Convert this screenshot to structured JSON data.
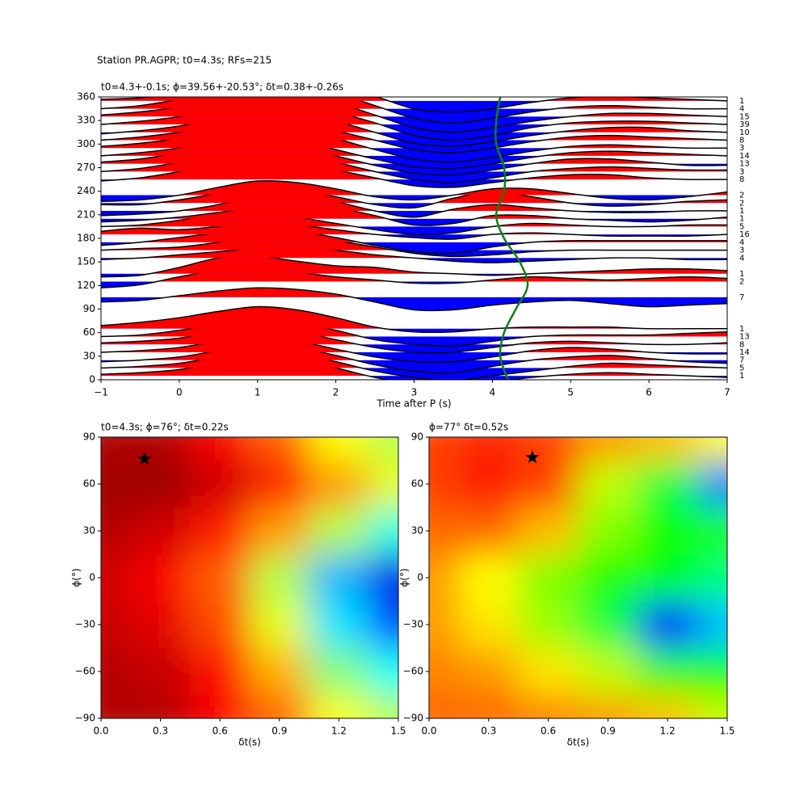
{
  "chart_data": [
    {
      "type": "wiggle",
      "suptitle": "Station PR.AGPR; t0=4.3s; RFs=215",
      "title": "t0=4.3+-0.1s; ϕ=39.56+-20.53°; δt=0.38+-0.26s",
      "xlabel": "Time after P (s)",
      "xlim": [
        -1,
        7
      ],
      "ylim": [
        0,
        360
      ],
      "xticks": [
        {
          "value": -1,
          "label": "−1"
        },
        0,
        1,
        2,
        3,
        4,
        5,
        6,
        7
      ],
      "yticks": [
        0,
        30,
        60,
        90,
        120,
        150,
        180,
        210,
        240,
        270,
        300,
        330,
        360
      ],
      "pos_color": "#ff0000",
      "neg_color": "#0000ff",
      "x": [
        -1,
        -0.5,
        0,
        0.5,
        1,
        1.5,
        2,
        2.5,
        3,
        3.5,
        4,
        4.5,
        5,
        5.5,
        6,
        6.5,
        7
      ],
      "series": [
        {
          "baseline": 5,
          "count": 1,
          "values": [
            2,
            4,
            8,
            16,
            22,
            20,
            10,
            -2,
            -10,
            -14,
            -8,
            -2,
            2,
            4,
            2,
            0,
            -2
          ]
        },
        {
          "baseline": 15,
          "count": 5,
          "values": [
            0,
            2,
            6,
            14,
            20,
            18,
            8,
            -4,
            -12,
            -16,
            -10,
            -4,
            2,
            6,
            4,
            2,
            0
          ]
        },
        {
          "baseline": 25,
          "count": 7,
          "values": [
            -2,
            0,
            4,
            12,
            18,
            16,
            6,
            -6,
            -14,
            -16,
            -8,
            0,
            4,
            6,
            2,
            -2,
            -4
          ]
        },
        {
          "baseline": 35,
          "count": 14,
          "values": [
            0,
            2,
            6,
            14,
            18,
            14,
            4,
            -6,
            -12,
            -12,
            -6,
            2,
            6,
            4,
            0,
            -2,
            -2
          ]
        },
        {
          "baseline": 45,
          "count": 8,
          "values": [
            2,
            4,
            8,
            16,
            20,
            16,
            6,
            -4,
            -10,
            -10,
            -4,
            2,
            4,
            2,
            0,
            0,
            2
          ]
        },
        {
          "baseline": 55,
          "count": 13,
          "values": [
            0,
            2,
            8,
            16,
            22,
            18,
            8,
            -4,
            -10,
            -12,
            -6,
            0,
            2,
            2,
            2,
            4,
            6
          ]
        },
        {
          "baseline": 65,
          "count": 1,
          "values": [
            4,
            8,
            14,
            22,
            28,
            24,
            14,
            2,
            -4,
            -4,
            0,
            2,
            2,
            2,
            0,
            0,
            0
          ]
        },
        {
          "baseline": 105,
          "count": 7,
          "values": [
            -6,
            -4,
            2,
            8,
            12,
            10,
            4,
            -6,
            -16,
            -16,
            -10,
            -6,
            -4,
            -8,
            -12,
            -10,
            -8
          ]
        },
        {
          "baseline": 125,
          "count": 2,
          "values": [
            -8,
            -4,
            6,
            14,
            16,
            12,
            6,
            2,
            -2,
            -2,
            2,
            6,
            4,
            2,
            4,
            6,
            4
          ]
        },
        {
          "baseline": 135,
          "count": 1,
          "values": [
            -4,
            -2,
            8,
            20,
            22,
            16,
            10,
            8,
            2,
            0,
            -2,
            0,
            2,
            4,
            6,
            6,
            4
          ]
        },
        {
          "baseline": 155,
          "count": 4,
          "values": [
            -2,
            0,
            4,
            8,
            12,
            14,
            10,
            4,
            0,
            -4,
            -6,
            -4,
            -2,
            0,
            0,
            -2,
            -2
          ]
        },
        {
          "baseline": 165,
          "count": 3,
          "values": [
            0,
            2,
            4,
            10,
            16,
            18,
            12,
            4,
            -4,
            -8,
            -6,
            -2,
            0,
            0,
            0,
            0,
            0
          ]
        },
        {
          "baseline": 175,
          "count": 4,
          "values": [
            -4,
            0,
            6,
            12,
            16,
            14,
            6,
            -4,
            -12,
            -14,
            -6,
            0,
            2,
            2,
            2,
            2,
            2
          ]
        },
        {
          "baseline": 185,
          "count": 16,
          "values": [
            4,
            8,
            6,
            10,
            14,
            12,
            6,
            0,
            -4,
            -6,
            0,
            2,
            0,
            -2,
            -2,
            -2,
            0
          ]
        },
        {
          "baseline": 195,
          "count": 5,
          "values": [
            0,
            2,
            8,
            16,
            18,
            12,
            4,
            -4,
            -10,
            -8,
            0,
            4,
            2,
            0,
            0,
            2,
            2
          ]
        },
        {
          "baseline": 205,
          "count": 1,
          "values": [
            -4,
            -2,
            2,
            8,
            14,
            20,
            14,
            4,
            -8,
            -6,
            4,
            4,
            0,
            -2,
            -4,
            -2,
            2
          ]
        },
        {
          "baseline": 215,
          "count": 1,
          "values": [
            -6,
            -4,
            0,
            8,
            20,
            24,
            12,
            0,
            -8,
            2,
            8,
            4,
            0,
            -2,
            -2,
            0,
            0
          ]
        },
        {
          "baseline": 225,
          "count": 2,
          "values": [
            -2,
            -2,
            4,
            12,
            18,
            16,
            8,
            -2,
            -6,
            6,
            14,
            8,
            0,
            -4,
            -2,
            2,
            4
          ]
        },
        {
          "baseline": 235,
          "count": 2,
          "values": [
            -8,
            -6,
            0,
            10,
            18,
            16,
            8,
            -2,
            -6,
            0,
            8,
            8,
            2,
            -4,
            -6,
            -2,
            4
          ]
        },
        {
          "baseline": 255,
          "count": 8,
          "values": [
            -2,
            2,
            10,
            20,
            26,
            22,
            12,
            2,
            -8,
            -10,
            -4,
            2,
            6,
            6,
            2,
            0,
            0
          ]
        },
        {
          "baseline": 265,
          "count": 3,
          "values": [
            0,
            4,
            12,
            22,
            28,
            24,
            12,
            0,
            -10,
            -14,
            -8,
            0,
            4,
            6,
            4,
            2,
            2
          ]
        },
        {
          "baseline": 275,
          "count": 13,
          "values": [
            2,
            6,
            14,
            22,
            26,
            22,
            10,
            -2,
            -12,
            -14,
            -8,
            0,
            6,
            6,
            2,
            -2,
            -2
          ]
        },
        {
          "baseline": 285,
          "count": 14,
          "values": [
            0,
            4,
            10,
            18,
            24,
            20,
            8,
            -4,
            -14,
            -16,
            -10,
            -2,
            4,
            6,
            4,
            2,
            0
          ]
        },
        {
          "baseline": 295,
          "count": 3,
          "values": [
            2,
            6,
            12,
            20,
            26,
            24,
            12,
            -2,
            -14,
            -18,
            -12,
            -4,
            2,
            4,
            2,
            0,
            0
          ]
        },
        {
          "baseline": 305,
          "count": 8,
          "values": [
            0,
            4,
            10,
            18,
            24,
            22,
            12,
            0,
            -12,
            -16,
            -10,
            -2,
            4,
            6,
            4,
            2,
            0
          ]
        },
        {
          "baseline": 315,
          "count": 10,
          "values": [
            -2,
            2,
            8,
            18,
            26,
            24,
            14,
            0,
            -14,
            -18,
            -12,
            -4,
            2,
            6,
            6,
            2,
            0
          ]
        },
        {
          "baseline": 325,
          "count": 39,
          "values": [
            0,
            4,
            10,
            20,
            28,
            28,
            16,
            2,
            -14,
            -20,
            -14,
            -4,
            2,
            4,
            4,
            2,
            0
          ]
        },
        {
          "baseline": 335,
          "count": 15,
          "values": [
            2,
            6,
            12,
            20,
            28,
            30,
            18,
            2,
            -14,
            -20,
            -14,
            -6,
            0,
            4,
            4,
            2,
            0
          ]
        },
        {
          "baseline": 345,
          "count": 4,
          "values": [
            0,
            4,
            12,
            22,
            30,
            32,
            20,
            4,
            -12,
            -18,
            -12,
            -4,
            2,
            4,
            2,
            0,
            0
          ]
        },
        {
          "baseline": 355,
          "count": 1,
          "values": [
            2,
            4,
            10,
            20,
            28,
            30,
            20,
            6,
            -10,
            -14,
            -10,
            -2,
            4,
            6,
            4,
            2,
            0
          ]
        }
      ],
      "t0_curve": {
        "color": "#108010",
        "x": [
          4.2,
          4.1,
          4.15,
          4.3,
          4.45,
          4.35,
          4.15,
          4.05,
          4.15,
          4.15,
          4.05,
          4.05,
          4.1
        ],
        "y": [
          0,
          30,
          60,
          90,
          120,
          150,
          180,
          210,
          240,
          270,
          300,
          330,
          360
        ]
      }
    },
    {
      "type": "heatmap",
      "cmap": "jet",
      "title": "t0=4.3s; ϕ=76°; δt=0.22s",
      "xlabel": "δt(s)",
      "ylabel": "ϕ(°)",
      "xlim": [
        0,
        1.5
      ],
      "ylim": [
        -90,
        90
      ],
      "xticks": [
        {
          "value": 0,
          "label": "0.0"
        },
        0.3,
        0.6,
        0.9,
        1.2,
        1.5
      ],
      "yticks": [
        {
          "value": -90,
          "label": "−90"
        },
        {
          "value": -60,
          "label": "−60"
        },
        {
          "value": -30,
          "label": "−30"
        },
        0,
        30,
        60,
        90
      ],
      "x": [
        0,
        0.3,
        0.6,
        0.9,
        1.2,
        1.5
      ],
      "y": [
        -90,
        -60,
        -30,
        0,
        30,
        60,
        90
      ],
      "z": [
        [
          0.95,
          0.95,
          0.88,
          0.78,
          0.62,
          0.55
        ],
        [
          0.95,
          0.93,
          0.86,
          0.7,
          0.5,
          0.38
        ],
        [
          0.93,
          0.9,
          0.8,
          0.6,
          0.35,
          0.2
        ],
        [
          0.92,
          0.88,
          0.78,
          0.55,
          0.3,
          0.1
        ],
        [
          0.95,
          0.92,
          0.85,
          0.72,
          0.55,
          0.4
        ],
        [
          0.97,
          0.97,
          0.92,
          0.85,
          0.72,
          0.6
        ],
        [
          0.95,
          0.95,
          0.88,
          0.78,
          0.62,
          0.55
        ]
      ],
      "star": {
        "x": 0.22,
        "y": 76
      }
    },
    {
      "type": "heatmap",
      "cmap": "gist_rainbow",
      "title": "ϕ=77° δt=0.52s",
      "xlabel": "δt(s)",
      "ylabel": "ϕ(°)",
      "xlim": [
        0,
        1.5
      ],
      "ylim": [
        -90,
        90
      ],
      "xticks": [
        {
          "value": 0,
          "label": "0.0"
        },
        0.3,
        0.6,
        0.9,
        1.2,
        1.5
      ],
      "yticks": [
        {
          "value": -90,
          "label": "−90"
        },
        {
          "value": -60,
          "label": "−60"
        },
        {
          "value": -30,
          "label": "−30"
        },
        0,
        30,
        60,
        90
      ],
      "x": [
        0,
        0.3,
        0.6,
        0.9,
        1.2,
        1.5
      ],
      "y": [
        -90,
        -60,
        -30,
        0,
        30,
        60,
        90
      ],
      "z": [
        [
          0.92,
          0.92,
          0.9,
          0.88,
          0.85,
          0.75
        ],
        [
          0.9,
          0.88,
          0.82,
          0.75,
          0.62,
          0.6
        ],
        [
          0.88,
          0.82,
          0.72,
          0.55,
          0.2,
          0.35
        ],
        [
          0.88,
          0.8,
          0.7,
          0.62,
          0.58,
          0.5
        ],
        [
          0.92,
          0.92,
          0.85,
          0.7,
          0.6,
          0.62
        ],
        [
          0.95,
          0.98,
          0.95,
          0.75,
          0.55,
          0.3
        ],
        [
          0.95,
          0.97,
          0.95,
          0.88,
          0.85,
          0.8
        ]
      ],
      "star": {
        "x": 0.52,
        "y": 77
      }
    }
  ]
}
